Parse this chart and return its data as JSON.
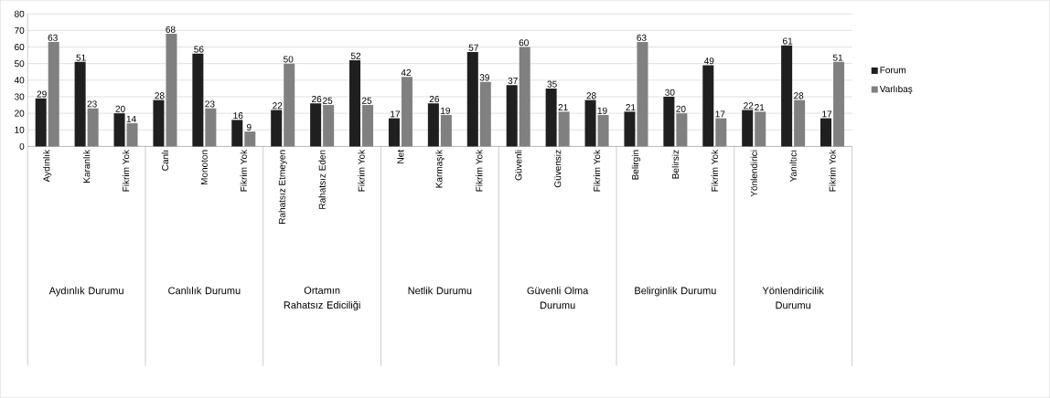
{
  "chart_data": {
    "type": "bar",
    "categories": [
      "Aydınlık",
      "Karanlık",
      "Fikrim Yok",
      "Canlı",
      "Monoton",
      "Fikrim Yok",
      "Rahatsız Etmeyen",
      "Rahatsız Eden",
      "Fikrim Yok",
      "Net",
      "Karmaşık",
      "Fikrim Yok",
      "Güvenli",
      "Güvensiz",
      "Fikrim Yok",
      "Belirgin",
      "Belirsiz",
      "Fikrim Yok",
      "Yönlendirici",
      "Yanıltıcı",
      "Fikrim Yok"
    ],
    "series": [
      {
        "name": "Forum",
        "color": "#1f1f1f",
        "values": [
          29,
          51,
          20,
          28,
          56,
          16,
          22,
          26,
          52,
          17,
          26,
          57,
          37,
          35,
          28,
          21,
          30,
          49,
          22,
          61,
          17
        ]
      },
      {
        "name": "Varlıbaş",
        "color": "#808080",
        "values": [
          63,
          23,
          14,
          68,
          23,
          9,
          50,
          25,
          25,
          42,
          19,
          39,
          60,
          21,
          19,
          63,
          20,
          17,
          21,
          28,
          51
        ]
      }
    ],
    "annotations": [
      "Aydınlık Durumu",
      "Canlılık Durumu",
      "Ortamın Rahatsız Ediciliği",
      "Netlik Durumu",
      "Güvenli Olma Durumu",
      "Belirginlik Durumu",
      "Yönlendiricilik Durumu"
    ],
    "ylim": [
      0,
      80
    ],
    "yticks": [
      0,
      10,
      20,
      30,
      40,
      50,
      60,
      70,
      80
    ],
    "grid": "y",
    "legend": "right",
    "data_labels": true
  }
}
